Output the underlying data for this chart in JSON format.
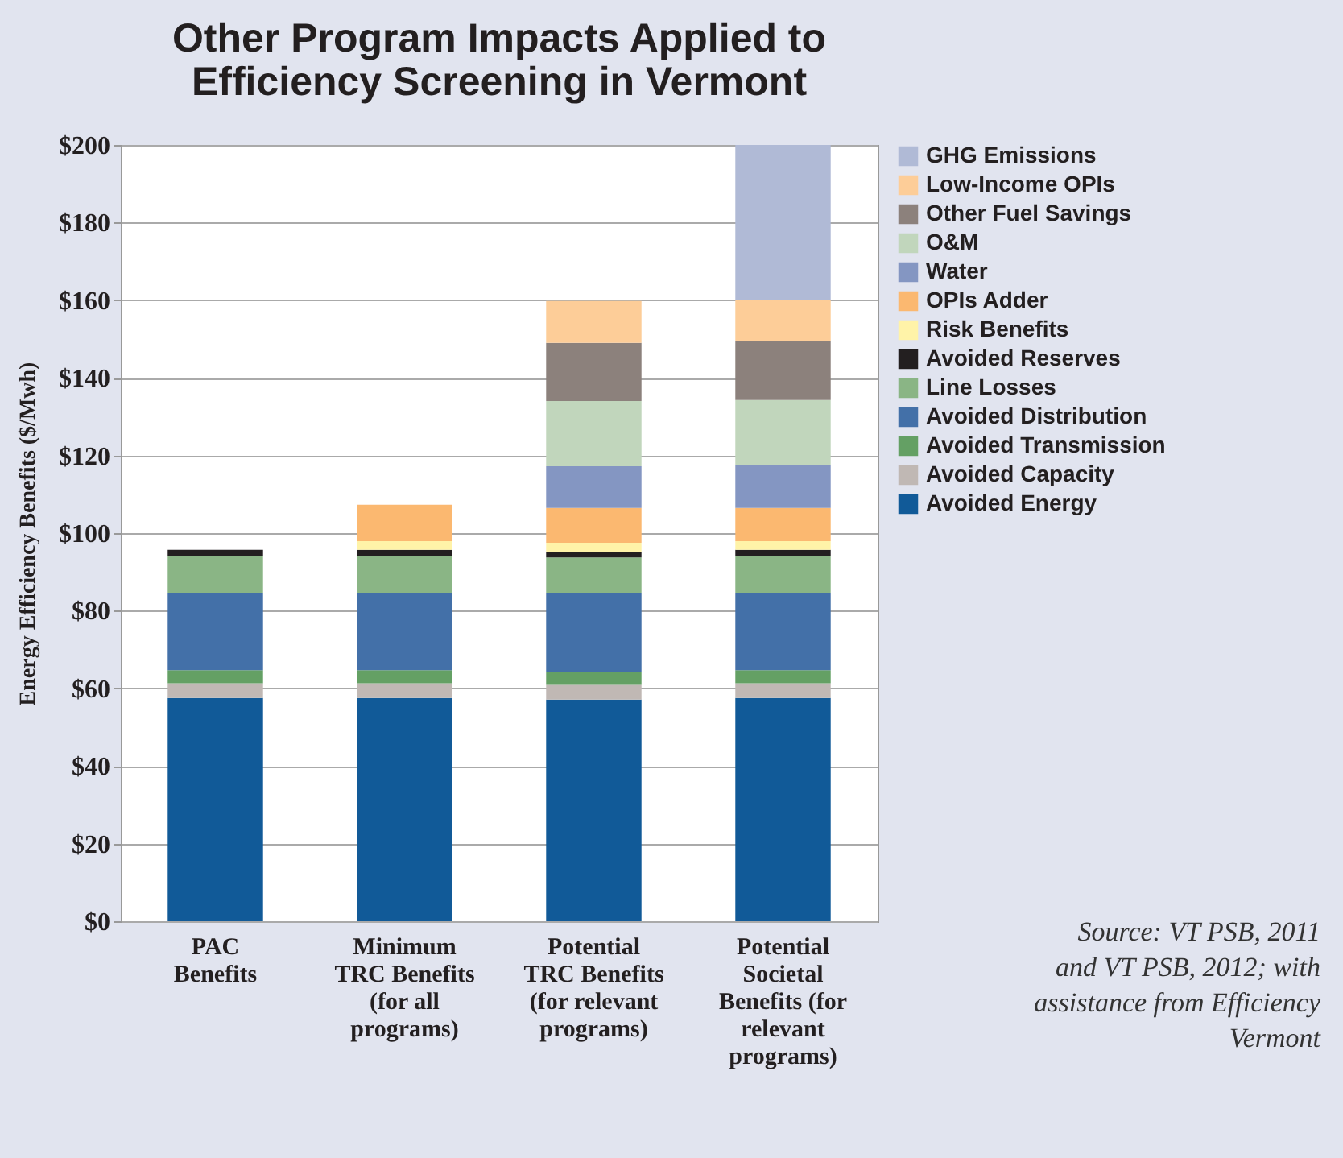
{
  "chart_data": {
    "type": "bar",
    "stacked": true,
    "title": "Other Program Impacts Applied to Efficiency Screening in Vermont",
    "ylabel": "Energy Efficiency Benefits ($/Mwh)",
    "categories": [
      "PAC Benefits",
      "Minimum TRC Benefits (for all programs)",
      "Potential TRC Benefits (for relevant programs)",
      "Potential Societal Benefits (for relevant programs)"
    ],
    "series": [
      {
        "name": "Avoided Energy",
        "color": "#115a98",
        "values": [
          57.5,
          57.5,
          57.1,
          57.5
        ]
      },
      {
        "name": "Avoided Capacity",
        "color": "#c0b8b4",
        "values": [
          3.8,
          3.8,
          3.8,
          3.8
        ]
      },
      {
        "name": "Avoided Transmission",
        "color": "#64a064",
        "values": [
          3.4,
          3.4,
          3.4,
          3.4
        ]
      },
      {
        "name": "Avoided Distribution",
        "color": "#4370a8",
        "values": [
          19.9,
          19.9,
          20.3,
          19.9
        ]
      },
      {
        "name": "Line Losses",
        "color": "#8ab585",
        "values": [
          9.4,
          9.4,
          9.1,
          9.4
        ]
      },
      {
        "name": "Avoided Reserves",
        "color": "#231f20",
        "values": [
          1.7,
          1.7,
          1.5,
          1.7
        ]
      },
      {
        "name": "Risk Benefits",
        "color": "#fff3a8",
        "values": [
          null,
          2.2,
          2.3,
          2.2
        ]
      },
      {
        "name": "OPIs Adder",
        "color": "#fbb870",
        "values": [
          null,
          9.4,
          9.0,
          8.6
        ]
      },
      {
        "name": "Water",
        "color": "#8496c2",
        "values": [
          null,
          null,
          10.7,
          11.1
        ]
      },
      {
        "name": "O&M",
        "color": "#c1d6bc",
        "values": [
          null,
          null,
          16.8,
          16.7
        ]
      },
      {
        "name": "Other Fuel Savings",
        "color": "#8c817c",
        "values": [
          null,
          null,
          15.0,
          15.1
        ]
      },
      {
        "name": "Low-Income OPIs",
        "color": "#fdcd98",
        "values": [
          null,
          null,
          10.8,
          10.7
        ]
      },
      {
        "name": "GHG Emissions",
        "color": "#b0bad6",
        "values": [
          null,
          null,
          null,
          39.9
        ]
      }
    ],
    "ylim": [
      0,
      200
    ],
    "yticks": [
      {
        "value": 0,
        "label": "$0"
      },
      {
        "value": 20,
        "label": "$20"
      },
      {
        "value": 40,
        "label": "$40"
      },
      {
        "value": 60,
        "label": "$60"
      },
      {
        "value": 80,
        "label": "$80"
      },
      {
        "value": 100,
        "label": "$100"
      },
      {
        "value": 120,
        "label": "$120"
      },
      {
        "value": 140,
        "label": "$140"
      },
      {
        "value": 160,
        "label": "$160"
      },
      {
        "value": 180,
        "label": "$180"
      },
      {
        "value": 200,
        "label": "$200"
      }
    ],
    "grid": "y",
    "legend": "right",
    "annotations": [
      "Source: VT PSB, 2011 and VT PSB, 2012; with assistance from Efficiency Vermont"
    ]
  }
}
